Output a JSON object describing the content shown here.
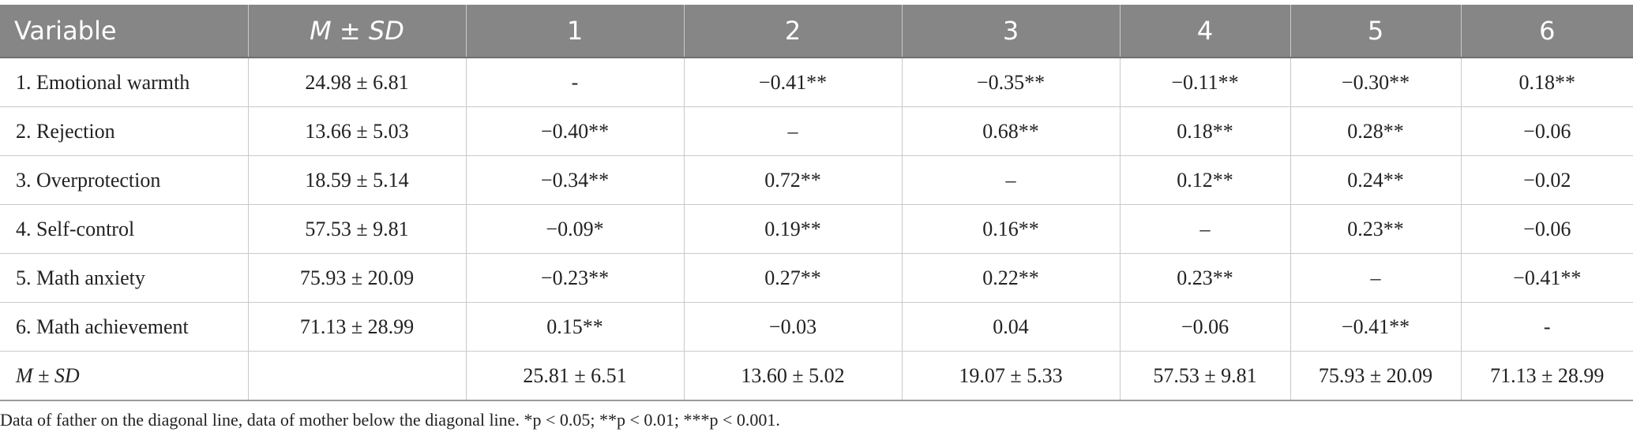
{
  "header": {
    "variable": "Variable",
    "msd": "M ± SD",
    "cols": [
      "1",
      "2",
      "3",
      "4",
      "5",
      "6"
    ]
  },
  "rows": [
    {
      "label": "1. Emotional warmth",
      "msd": "24.98 ± 6.81",
      "cells": [
        "-",
        "−0.41**",
        "−0.35**",
        "−0.11**",
        "−0.30**",
        "0.18**"
      ]
    },
    {
      "label": "2. Rejection",
      "msd": "13.66 ± 5.03",
      "cells": [
        "−0.40**",
        "–",
        "0.68**",
        "0.18**",
        "0.28**",
        "−0.06"
      ]
    },
    {
      "label": "3. Overprotection",
      "msd": "18.59 ± 5.14",
      "cells": [
        "−0.34**",
        "0.72**",
        "–",
        "0.12**",
        "0.24**",
        "−0.02"
      ]
    },
    {
      "label": "4. Self-control",
      "msd": "57.53 ± 9.81",
      "cells": [
        "−0.09*",
        "0.19**",
        "0.16**",
        "–",
        "0.23**",
        "−0.06"
      ]
    },
    {
      "label": "5. Math anxiety",
      "msd": "75.93 ± 20.09",
      "cells": [
        "−0.23**",
        "0.27**",
        "0.22**",
        "0.23**",
        "–",
        "−0.41**"
      ]
    },
    {
      "label": "6. Math achievement",
      "msd": "71.13 ± 28.99",
      "cells": [
        "0.15**",
        "−0.03",
        "0.04",
        "−0.06",
        "−0.41**",
        "-"
      ]
    }
  ],
  "footer_row": {
    "label": "M ± SD",
    "msd": "",
    "cells": [
      "25.81 ± 6.51",
      "13.60 ± 5.02",
      "19.07 ± 5.33",
      "57.53 ± 9.81",
      "75.93 ± 20.09",
      "71.13 ± 28.99"
    ]
  },
  "note": "Data of father on the diagonal line, data of mother below the diagonal line. *p < 0.05; **p < 0.01; ***p < 0.001."
}
